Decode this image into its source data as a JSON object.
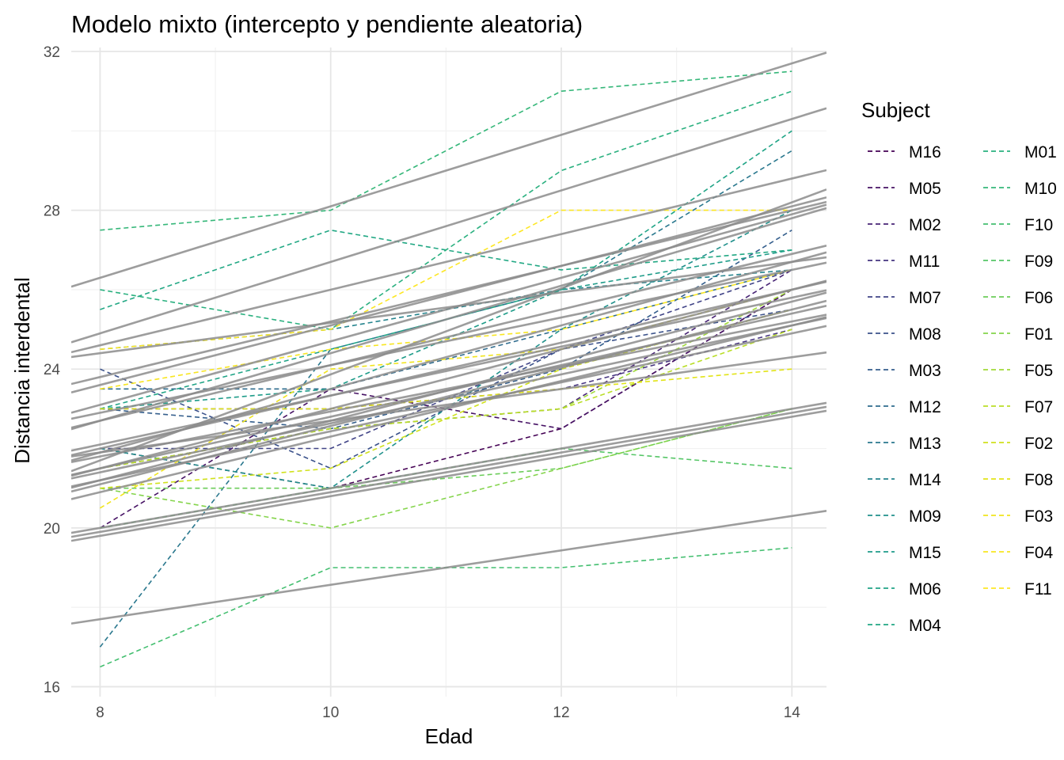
{
  "chart_data": {
    "type": "line",
    "title": "Modelo mixto (intercepto y pendiente aleatoria)",
    "xlabel": "Edad",
    "ylabel": "Distancia interdental",
    "xlim": [
      7.75,
      14.3
    ],
    "ylim": [
      15.75,
      32.1
    ],
    "x_ticks": [
      8,
      10,
      12,
      14
    ],
    "y_ticks": [
      16,
      20,
      24,
      28,
      32
    ],
    "x": [
      8,
      10,
      12,
      14
    ],
    "grid": true,
    "legend_title": "Subject",
    "legend_position": "right",
    "fitted_line_color": "#8c8c8c",
    "series": [
      {
        "name": "M16",
        "color": "#440154",
        "values": [
          22.0,
          21.0,
          22.5,
          26.0
        ],
        "fit": [
          20.9,
          22.3,
          23.7,
          25.1
        ]
      },
      {
        "name": "M05",
        "color": "#471365",
        "values": [
          20.0,
          23.5,
          22.5,
          26.0
        ],
        "fit": [
          21.1,
          22.6,
          24.1,
          25.5
        ]
      },
      {
        "name": "M02",
        "color": "#482475",
        "values": [
          21.5,
          22.5,
          23.0,
          26.5
        ],
        "fit": [
          21.2,
          22.7,
          24.2,
          25.7
        ]
      },
      {
        "name": "M11",
        "color": "#463480",
        "values": [
          23.0,
          23.0,
          23.5,
          25.0
        ],
        "fit": [
          21.8,
          22.9,
          24.1,
          25.2
        ]
      },
      {
        "name": "M07",
        "color": "#414487",
        "values": [
          22.0,
          22.0,
          24.5,
          26.5
        ],
        "fit": [
          21.5,
          23.0,
          24.5,
          26.0
        ]
      },
      {
        "name": "M08",
        "color": "#3b528b",
        "values": [
          24.0,
          21.5,
          24.5,
          25.5
        ],
        "fit": [
          22.1,
          23.3,
          24.6,
          25.8
        ]
      },
      {
        "name": "M03",
        "color": "#355f8d",
        "values": [
          23.0,
          22.5,
          24.0,
          27.5
        ],
        "fit": [
          21.9,
          23.5,
          25.1,
          26.7
        ]
      },
      {
        "name": "M12",
        "color": "#2f6c8e",
        "values": [
          23.5,
          23.5,
          25.0,
          26.5
        ],
        "fit": [
          22.7,
          24.1,
          25.5,
          26.9
        ]
      },
      {
        "name": "M13",
        "color": "#2a788e",
        "values": [
          17.0,
          24.5,
          26.0,
          29.5
        ],
        "fit": [
          21.7,
          23.9,
          26.0,
          28.2
        ]
      },
      {
        "name": "M14",
        "color": "#25848e",
        "values": [
          24.5,
          25.0,
          26.0,
          26.5
        ],
        "fit": [
          24.4,
          25.2,
          25.9,
          26.7
        ]
      },
      {
        "name": "M09",
        "color": "#21918c",
        "values": [
          22.0,
          21.0,
          25.0,
          28.0
        ],
        "fit": [
          22.7,
          24.4,
          26.1,
          27.8
        ]
      },
      {
        "name": "M15",
        "color": "#1e9c89",
        "values": [
          23.0,
          23.5,
          26.0,
          27.0
        ],
        "fit": [
          23.6,
          25.1,
          26.6,
          28.1
        ]
      },
      {
        "name": "M06",
        "color": "#20a486",
        "values": [
          23.0,
          24.5,
          26.0,
          30.0
        ],
        "fit": [
          23.1,
          24.7,
          26.3,
          27.9
        ]
      },
      {
        "name": "M04",
        "color": "#22a884",
        "values": [
          25.5,
          27.5,
          26.5,
          27.0
        ],
        "fit": [
          24.6,
          26.0,
          27.4,
          28.8
        ]
      },
      {
        "name": "M01",
        "color": "#2ab07f",
        "values": [
          26.0,
          25.0,
          29.0,
          31.0
        ],
        "fit": [
          24.9,
          26.7,
          28.5,
          30.3
        ]
      },
      {
        "name": "M10",
        "color": "#35b779",
        "values": [
          27.5,
          28.0,
          31.0,
          31.5
        ],
        "fit": [
          26.3,
          28.1,
          29.9,
          31.7
        ]
      },
      {
        "name": "F10",
        "color": "#44bf70",
        "values": [
          16.5,
          19.0,
          19.0,
          19.5
        ],
        "fit": [
          17.7,
          18.6,
          19.4,
          20.3
        ]
      },
      {
        "name": "F09",
        "color": "#56c667",
        "values": [
          20.0,
          21.0,
          22.0,
          21.5
        ],
        "fit": [
          20.0,
          21.0,
          22.0,
          23.0
        ]
      },
      {
        "name": "F06",
        "color": "#6ccd5a",
        "values": [
          21.0,
          21.0,
          21.5,
          23.0
        ],
        "fit": [
          19.9,
          20.9,
          21.9,
          22.9
        ]
      },
      {
        "name": "F01",
        "color": "#84d44b",
        "values": [
          21.0,
          20.0,
          21.5,
          23.0
        ],
        "fit": [
          19.8,
          20.8,
          21.8,
          22.8
        ]
      },
      {
        "name": "F05",
        "color": "#a0da39",
        "values": [
          21.5,
          22.5,
          23.0,
          26.0
        ],
        "fit": [
          21.5,
          22.8,
          24.1,
          25.4
        ]
      },
      {
        "name": "F07",
        "color": "#bade28",
        "values": [
          21.5,
          22.5,
          23.0,
          25.0
        ],
        "fit": [
          21.4,
          22.6,
          23.9,
          25.1
        ]
      },
      {
        "name": "F02",
        "color": "#d0e11c",
        "values": [
          21.0,
          21.5,
          24.0,
          25.5
        ],
        "fit": [
          21.2,
          22.4,
          23.7,
          24.9
        ]
      },
      {
        "name": "F08",
        "color": "#e2e418",
        "values": [
          23.0,
          23.0,
          23.5,
          24.0
        ],
        "fit": [
          21.9,
          22.7,
          23.5,
          24.3
        ]
      },
      {
        "name": "F03",
        "color": "#f1e51d",
        "values": [
          20.5,
          24.0,
          24.5,
          26.0
        ],
        "fit": [
          22.0,
          23.3,
          24.7,
          26.0
        ]
      },
      {
        "name": "F04",
        "color": "#f8e621",
        "values": [
          23.5,
          24.5,
          25.0,
          26.5
        ],
        "fit": [
          22.9,
          24.1,
          25.3,
          26.5
        ]
      },
      {
        "name": "F11",
        "color": "#fde725",
        "values": [
          24.5,
          25.0,
          28.0,
          28.0
        ],
        "fit": [
          23.8,
          25.2,
          26.6,
          28.0
        ]
      }
    ]
  }
}
